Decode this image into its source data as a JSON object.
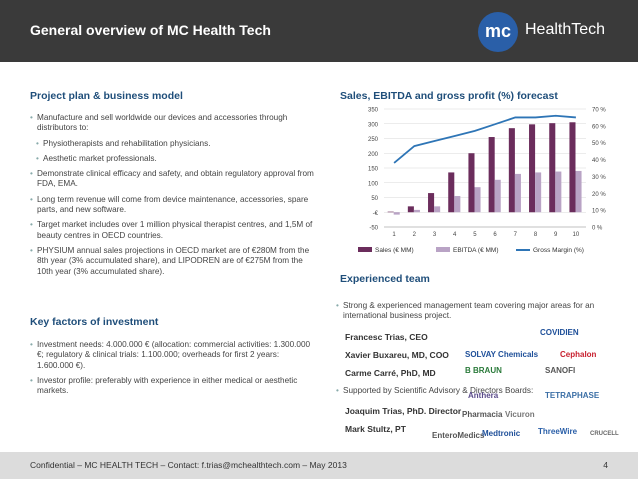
{
  "header": {
    "title": "General overview of MC Health Tech",
    "logo_mark": "mc",
    "logo_text": "HealthTech"
  },
  "project": {
    "title": "Project plan & business model",
    "bullets": [
      "Manufacture and sell worldwide our devices and accessories through distributors to:",
      "Physiotherapists and rehabilitation physicians.",
      "Aesthetic market professionals.",
      "Demonstrate clinical efficacy and safety, and obtain regulatory approval from FDA, EMA.",
      "Long term revenue will come from device maintenance, accessories, spare parts, and new software.",
      "Target market includes over 1 million physical therapist centres, and 1,5M of beauty centres in OECD countries.",
      "PHYSIUM annual sales projections in OECD market are of €280M from the 8th year (3% accumulated share), and LIPODREN are of €275M from the 10th year (3% accumulated share)."
    ]
  },
  "investment": {
    "title": "Key factors of investment",
    "bullets": [
      "Investment needs: 4.000.000 € (allocation: commercial activities: 1.300.000 €; regulatory & clinical trials: 1.100.000; overheads for first 2 years: 1.600.000 €).",
      "Investor profile: preferably with experience in either medical or aesthetic markets."
    ]
  },
  "forecast": {
    "title": "Sales, EBITDA and gross profit (%) forecast"
  },
  "chart_data": {
    "type": "bar",
    "categories": [
      "1",
      "2",
      "3",
      "4",
      "5",
      "6",
      "7",
      "8",
      "9",
      "10"
    ],
    "series": [
      {
        "name": "Sales (€ MM)",
        "type": "bar",
        "axis": "left",
        "color": "#6b2d5c",
        "values": [
          2,
          20,
          65,
          135,
          200,
          255,
          285,
          298,
          302,
          305
        ]
      },
      {
        "name": "EBITDA (€ MM)",
        "type": "bar",
        "axis": "left",
        "color": "#b9a3c5",
        "values": [
          -8,
          8,
          20,
          55,
          85,
          110,
          130,
          135,
          138,
          140
        ]
      },
      {
        "name": "Gross Margin (%)",
        "type": "line",
        "axis": "right",
        "color": "#2e75b6",
        "values": [
          38,
          48,
          51,
          54,
          57,
          61,
          65,
          65,
          66,
          65
        ]
      }
    ],
    "y_left": {
      "ticks": [
        "-50",
        "-€",
        "50",
        "100",
        "150",
        "200",
        "250",
        "300",
        "350"
      ],
      "ylim": [
        -50,
        350
      ]
    },
    "y_right": {
      "ticks": [
        "0 %",
        "10 %",
        "20 %",
        "30 %",
        "40 %",
        "50 %",
        "60 %",
        "70 %"
      ],
      "ylim": [
        0,
        70
      ]
    },
    "grid": true,
    "legend": "bottom"
  },
  "team": {
    "title": "Experienced team",
    "intro": "Strong & experienced management team covering major areas for an international business project.",
    "members": [
      "Francesc Trias, CEO",
      "Xavier Buxareu, MD, COO",
      "Carme Carré, PhD, MD"
    ],
    "boards_intro": "Supported by Scientific Advisory & Directors Boards:",
    "board": [
      "Joaquim Trias, PhD. Director",
      "Mark Stultz, PT"
    ],
    "logos": [
      {
        "text": "COVIDIEN",
        "color": "#1e4f99"
      },
      {
        "text": "SOLVAY Chemicals",
        "color": "#1e4f99"
      },
      {
        "text": "Cephalon",
        "color": "#c8202f"
      },
      {
        "text": "B BRAUN",
        "color": "#2a7a3a"
      },
      {
        "text": "SANOFI",
        "color": "#555555"
      },
      {
        "text": "Anthera",
        "color": "#5a4b8a"
      },
      {
        "text": "TETRAPHASE",
        "color": "#3a6ea5"
      },
      {
        "text": "Pharmacia",
        "color": "#555555"
      },
      {
        "text": "Vicuron",
        "color": "#777777"
      },
      {
        "text": "EnteroMedics",
        "color": "#555555"
      },
      {
        "text": "Medtronic",
        "color": "#1e4f99"
      },
      {
        "text": "ThreeWire",
        "color": "#2a5fa8"
      },
      {
        "text": "CRUCELL",
        "color": "#666666"
      }
    ]
  },
  "footer": {
    "text": "Confidential – MC HEALTH TECH – Contact: f.trias@mchealthtech.com – May 2013",
    "page": "4"
  }
}
